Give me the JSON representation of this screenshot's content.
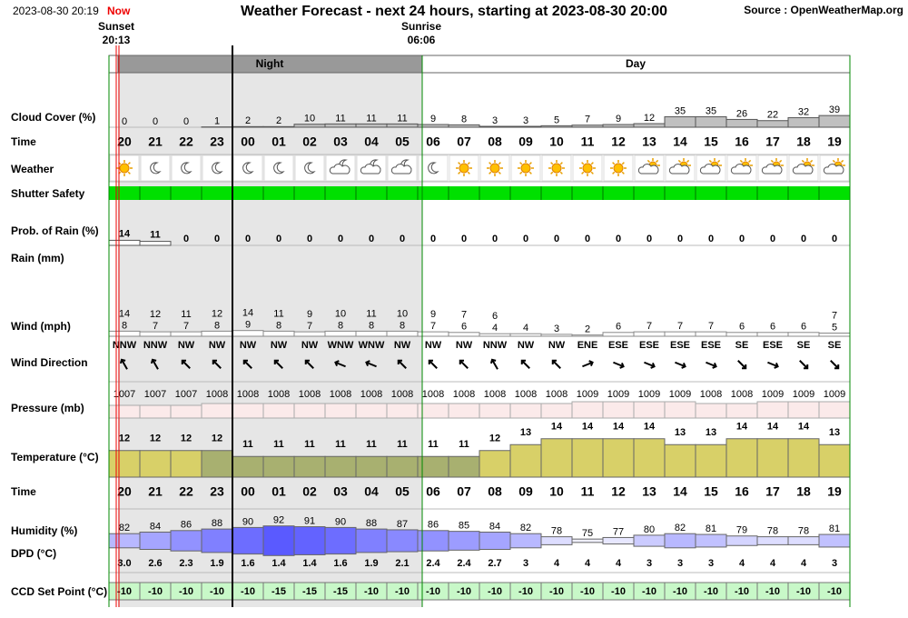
{
  "header": {
    "timestamp": "2023-08-30 20:19",
    "now": "Now",
    "title": "Weather Forecast - next 24 hours, starting at 2023-08-30 20:00",
    "source": "Source : OpenWeatherMap.org"
  },
  "sunset": {
    "label": "Sunset",
    "time": "20:13"
  },
  "sunrise": {
    "label": "Sunrise",
    "time": "06:06"
  },
  "periods": {
    "night": "Night",
    "day": "Day"
  },
  "row_labels": [
    "Cloud Cover (%)",
    "Time",
    "Weather",
    "Shutter Safety",
    "Prob. of Rain (%)",
    "Rain (mm)",
    "Wind (mph)",
    "Wind Direction",
    "Pressure (mb)",
    "Temperature (°C)",
    "Time",
    "Humidity (%)",
    "DPD (°C)",
    "CCD Set Point (°C)"
  ],
  "table": {
    "hours": [
      "20",
      "21",
      "22",
      "23",
      "00",
      "01",
      "02",
      "03",
      "04",
      "05",
      "06",
      "07",
      "08",
      "09",
      "10",
      "11",
      "12",
      "13",
      "14",
      "15",
      "16",
      "17",
      "18",
      "19"
    ],
    "cloud_cover": [
      0,
      0,
      0,
      1,
      2,
      2,
      10,
      11,
      11,
      11,
      9,
      8,
      3,
      3,
      5,
      7,
      9,
      12,
      35,
      35,
      26,
      22,
      32,
      39
    ],
    "rain_prob": [
      14,
      11,
      0,
      0,
      0,
      0,
      0,
      0,
      0,
      0,
      0,
      0,
      0,
      0,
      0,
      0,
      0,
      0,
      0,
      0,
      0,
      0,
      0,
      0
    ],
    "wind_gust": [
      14,
      12,
      11,
      12,
      14,
      11,
      9,
      10,
      11,
      10,
      9,
      7,
      6,
      null,
      null,
      null,
      null,
      null,
      null,
      null,
      null,
      null,
      null,
      7
    ],
    "wind_speed": [
      8,
      7,
      7,
      8,
      9,
      8,
      7,
      8,
      8,
      8,
      7,
      6,
      4,
      4,
      3,
      2,
      6,
      7,
      7,
      7,
      6,
      6,
      6,
      5
    ],
    "wind_direction": [
      "NNW",
      "NNW",
      "NW",
      "NW",
      "NW",
      "NW",
      "NW",
      "WNW",
      "WNW",
      "NW",
      "NW",
      "NW",
      "NNW",
      "NW",
      "NW",
      "ENE",
      "ESE",
      "ESE",
      "ESE",
      "ESE",
      "SE",
      "ESE",
      "SE",
      "SE"
    ],
    "pressure": [
      1007,
      1007,
      1007,
      1008,
      1008,
      1008,
      1008,
      1008,
      1008,
      1008,
      1008,
      1008,
      1008,
      1008,
      1008,
      1009,
      1009,
      1009,
      1009,
      1008,
      1008,
      1009,
      1009,
      1009
    ],
    "temperature": [
      12,
      12,
      12,
      12,
      11,
      11,
      11,
      11,
      11,
      11,
      11,
      11,
      12,
      13,
      14,
      14,
      14,
      14,
      13,
      13,
      14,
      14,
      14,
      13
    ],
    "humidity": [
      82,
      84,
      86,
      88,
      90,
      92,
      91,
      90,
      88,
      87,
      86,
      85,
      84,
      82,
      78,
      75,
      77,
      80,
      82,
      81,
      79,
      78,
      78,
      81
    ],
    "dpd": [
      "3.0",
      "2.6",
      "2.3",
      "1.9",
      "1.6",
      "1.4",
      "1.4",
      "1.6",
      "1.9",
      "2.1",
      "2.4",
      "2.4",
      "2.7",
      "3",
      "4",
      "4",
      "4",
      "3",
      "3",
      "3",
      "4",
      "4",
      "4",
      "3"
    ],
    "ccd_set_point": [
      -10,
      -10,
      -10,
      -10,
      -10,
      -15,
      -15,
      -15,
      -10,
      -10,
      -10,
      -10,
      -10,
      -10,
      -10,
      -10,
      -10,
      -10,
      -10,
      -10,
      -10,
      -10,
      -10,
      -10
    ]
  }
}
